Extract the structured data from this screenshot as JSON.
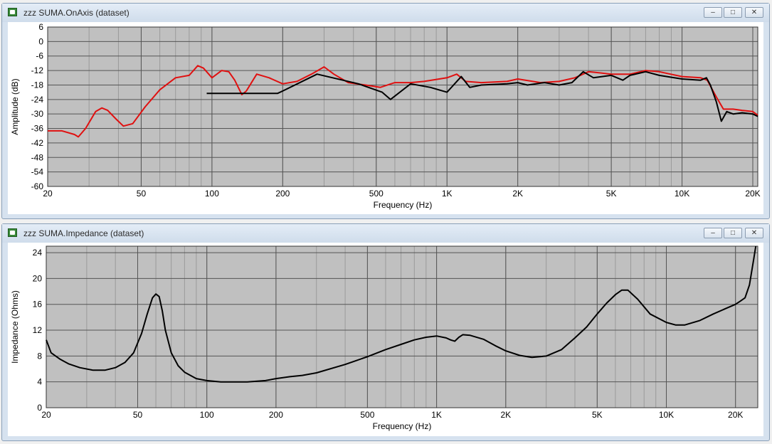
{
  "windows": [
    {
      "title": "zzz SUMA.OnAxis (dataset)"
    },
    {
      "title": "zzz SUMA.Impedance (dataset)"
    }
  ],
  "window_buttons": {
    "minimize": "–",
    "maximize": "□",
    "close": "✕"
  },
  "chart_data": [
    {
      "type": "line",
      "xlabel": "Frequency (Hz)",
      "ylabel": "Amplitude (dB)",
      "x_scale": "log",
      "xlim": [
        20,
        21000
      ],
      "ylim": [
        -60,
        6
      ],
      "x_ticks": [
        [
          20,
          "20"
        ],
        [
          50,
          "50"
        ],
        [
          100,
          "100"
        ],
        [
          200,
          "200"
        ],
        [
          500,
          "500"
        ],
        [
          1000,
          "1K"
        ],
        [
          2000,
          "2K"
        ],
        [
          5000,
          "5K"
        ],
        [
          10000,
          "10K"
        ],
        [
          20000,
          "20K"
        ]
      ],
      "y_ticks": [
        6,
        0,
        -6,
        -12,
        -18,
        -24,
        -30,
        -36,
        -42,
        -48,
        -54,
        -60
      ],
      "grid": true,
      "series": [
        {
          "color": "#e01010",
          "x": [
            20,
            23,
            26,
            27,
            29,
            32,
            34,
            36,
            39,
            42,
            46,
            52,
            60,
            70,
            80,
            87,
            92,
            100,
            110,
            118,
            125,
            134,
            140,
            155,
            175,
            200,
            230,
            265,
            300,
            330,
            380,
            450,
            520,
            600,
            700,
            800,
            1000,
            1100,
            1200,
            1400,
            1800,
            2000,
            2500,
            3000,
            3500,
            4000,
            4500,
            5000,
            6000,
            7000,
            8000,
            10000,
            12000,
            12800,
            14000,
            15000,
            16500,
            18000,
            20000,
            21000
          ],
          "y": [
            -37,
            -37,
            -38.5,
            -39.5,
            -36,
            -29,
            -27.5,
            -28.5,
            -32,
            -35,
            -34,
            -27,
            -20,
            -15,
            -14,
            -10,
            -11,
            -15,
            -12,
            -12.5,
            -16,
            -22,
            -20.5,
            -13.5,
            -15,
            -17.5,
            -16.5,
            -13.5,
            -10.5,
            -13.5,
            -17,
            -18,
            -19,
            -17,
            -17,
            -16.5,
            -15,
            -13.5,
            -16.5,
            -17,
            -16.5,
            -15.5,
            -17,
            -16.5,
            -15,
            -12.5,
            -13,
            -13.5,
            -13.5,
            -12,
            -12.5,
            -14.5,
            -15,
            -16,
            -23,
            -28,
            -28,
            -28.5,
            -29,
            -30.5
          ]
        },
        {
          "color": "#000000",
          "x": [
            95,
            190,
            200,
            280,
            420,
            530,
            575,
            700,
            850,
            1000,
            1150,
            1250,
            1400,
            1800,
            2000,
            2200,
            2600,
            3000,
            3400,
            3800,
            4200,
            5000,
            5600,
            6000,
            7000,
            8000,
            10000,
            12000,
            12700,
            13200,
            14000,
            14700,
            15500,
            16500,
            18000,
            20000,
            21000
          ],
          "y": [
            -21.5,
            -21.5,
            -20.5,
            -13.5,
            -17.5,
            -21,
            -24,
            -17.5,
            -19,
            -21,
            -14.5,
            -19,
            -18,
            -17.5,
            -17,
            -18,
            -17,
            -18,
            -17,
            -12.5,
            -15,
            -14,
            -16,
            -14,
            -12.5,
            -14,
            -15.5,
            -16,
            -15,
            -18,
            -25,
            -33,
            -29,
            -30,
            -29.5,
            -30,
            -31
          ]
        }
      ]
    },
    {
      "type": "line",
      "xlabel": "Frequency (Hz)",
      "ylabel": "Impedance (Ohms)",
      "x_scale": "log",
      "xlim": [
        20,
        25000
      ],
      "ylim": [
        0,
        25
      ],
      "x_ticks": [
        [
          20,
          "20"
        ],
        [
          50,
          "50"
        ],
        [
          100,
          "100"
        ],
        [
          200,
          "200"
        ],
        [
          500,
          "500"
        ],
        [
          1000,
          "1K"
        ],
        [
          2000,
          "2K"
        ],
        [
          5000,
          "5K"
        ],
        [
          10000,
          "10K"
        ],
        [
          20000,
          "20K"
        ]
      ],
      "y_ticks": [
        24,
        20,
        16,
        12,
        8,
        4,
        0
      ],
      "grid": true,
      "series": [
        {
          "color": "#000000",
          "x": [
            20,
            21,
            23,
            25,
            28,
            32,
            36,
            40,
            44,
            48,
            52,
            55,
            58,
            60,
            62,
            64,
            66,
            70,
            75,
            80,
            90,
            100,
            115,
            130,
            150,
            180,
            200,
            230,
            260,
            300,
            400,
            500,
            600,
            700,
            800,
            900,
            1000,
            1100,
            1150,
            1200,
            1250,
            1300,
            1400,
            1600,
            1800,
            2000,
            2300,
            2600,
            3000,
            3500,
            4000,
            4500,
            5000,
            5500,
            6000,
            6400,
            6800,
            7500,
            8500,
            10000,
            11000,
            12000,
            14000,
            16000,
            18000,
            20000,
            21000,
            22000,
            23000,
            23500,
            24000,
            24500
          ],
          "y": [
            10.5,
            8.5,
            7.5,
            6.8,
            6.2,
            5.8,
            5.8,
            6.2,
            7,
            8.5,
            11.5,
            14.5,
            17,
            17.6,
            17.2,
            15,
            12,
            8.5,
            6.5,
            5.5,
            4.5,
            4.2,
            4,
            4,
            4,
            4.2,
            4.5,
            4.8,
            5,
            5.4,
            6.7,
            7.9,
            9,
            9.8,
            10.5,
            10.9,
            11.1,
            10.8,
            10.5,
            10.3,
            10.9,
            11.3,
            11.2,
            10.6,
            9.6,
            8.8,
            8.1,
            7.8,
            8,
            9,
            10.8,
            12.5,
            14.5,
            16.2,
            17.5,
            18.2,
            18.2,
            16.8,
            14.5,
            13.2,
            12.8,
            12.8,
            13.5,
            14.5,
            15.3,
            16,
            16.5,
            17,
            19,
            21,
            23,
            25
          ]
        }
      ]
    }
  ]
}
